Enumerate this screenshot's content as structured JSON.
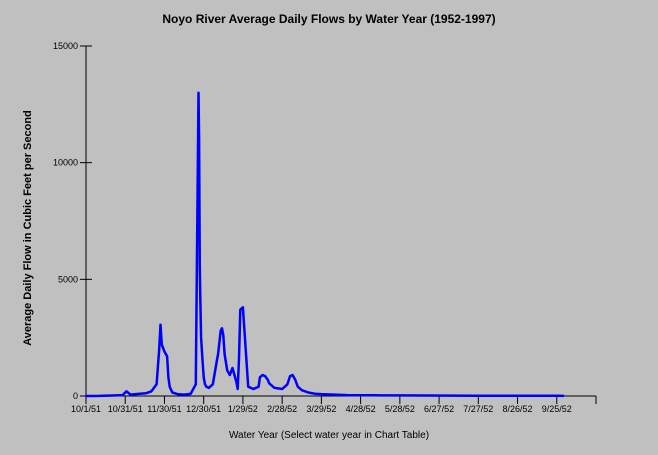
{
  "chart_data": {
    "type": "line",
    "title": "Noyo River Average Daily Flows by Water Year (1952-1997)",
    "xlabel": "Water Year (Select water year in Chart Table)",
    "ylabel": "Average Daily Flow in Cubic Feet per Second",
    "x_tick_labels": [
      "10/1/51",
      "10/31/51",
      "11/30/51",
      "12/30/51",
      "1/29/52",
      "2/28/52",
      "3/29/52",
      "4/28/52",
      "5/28/52",
      "6/27/52",
      "7/27/52",
      "8/26/52",
      "9/25/52"
    ],
    "x_start": "1951-10-01",
    "x_tick_step_days": 30,
    "xlim_days": [
      0,
      390
    ],
    "ylim": [
      0,
      15000
    ],
    "y_ticks": [
      0,
      5000,
      10000,
      15000
    ],
    "grid": false,
    "series_color": "#0000ff",
    "series": [
      {
        "name": "",
        "x_days": [
          0,
          10,
          20,
          28,
          31,
          34,
          40,
          46,
          50,
          54,
          56,
          57,
          58,
          60,
          62,
          63,
          64,
          66,
          70,
          75,
          80,
          84,
          85,
          86,
          86.5,
          87,
          87.5,
          88,
          89,
          90,
          91,
          92,
          94,
          97,
          100,
          101,
          103,
          104,
          105,
          106,
          108,
          110,
          112,
          114,
          115,
          116,
          117,
          118,
          120,
          124,
          128,
          132,
          133,
          135,
          137,
          139,
          140,
          142,
          144,
          150,
          154,
          156,
          158,
          160,
          162,
          165,
          170,
          175,
          180,
          190,
          200,
          220,
          240,
          260,
          280,
          300,
          330,
          360,
          365
        ],
        "values": [
          0,
          5,
          20,
          40,
          200,
          60,
          90,
          120,
          200,
          500,
          2000,
          3050,
          2200,
          1900,
          1700,
          800,
          400,
          150,
          80,
          60,
          90,
          500,
          7000,
          13000,
          11000,
          5500,
          4000,
          2500,
          1600,
          800,
          500,
          400,
          350,
          500,
          1500,
          1800,
          2800,
          2900,
          2600,
          1800,
          1100,
          900,
          1200,
          800,
          600,
          300,
          1600,
          3700,
          3800,
          400,
          300,
          400,
          800,
          900,
          850,
          700,
          550,
          450,
          350,
          300,
          500,
          850,
          900,
          700,
          400,
          250,
          150,
          100,
          80,
          60,
          40,
          30,
          25,
          20,
          15,
          10,
          10,
          8,
          5
        ]
      }
    ]
  }
}
